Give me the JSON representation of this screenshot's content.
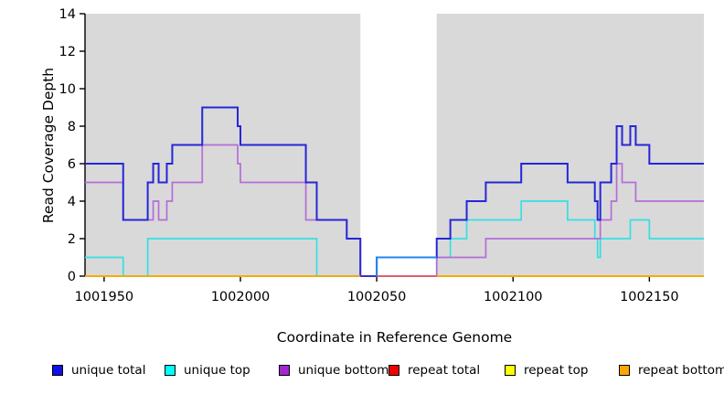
{
  "figure": {
    "title": "",
    "ylabel": "Read Coverage Depth",
    "xlabel": "Coordinate in Reference Genome",
    "background_color": "#ffffff",
    "plot_background_color": "#d9d9d9",
    "axis_color": "#000000",
    "highlight_band_color": "#ffffff"
  },
  "chart_data": {
    "type": "line",
    "subtype": "step-coverage",
    "title": "",
    "xlabel": "Coordinate in Reference Genome",
    "ylabel": "Read Coverage Depth",
    "xlim": [
      1001943,
      1002170
    ],
    "ylim": [
      0,
      14
    ],
    "x_ticks": [
      1001950,
      1002000,
      1002050,
      1002100,
      1002150
    ],
    "y_ticks": [
      0,
      2,
      4,
      6,
      8,
      10,
      12,
      14
    ],
    "grid": false,
    "legend_position": "bottom",
    "plot_background": "#d9d9d9",
    "highlight_band": {
      "x_start": 1002044,
      "x_end": 1002072,
      "color": "#ffffff"
    },
    "series": [
      {
        "name": "unique total",
        "color": "#2626d8",
        "legend_color": "#1010e8",
        "draw_order": 5,
        "width": 2,
        "steps": [
          [
            1001943,
            6
          ],
          [
            1001957,
            3
          ],
          [
            1001966,
            5
          ],
          [
            1001968,
            6
          ],
          [
            1001970,
            5
          ],
          [
            1001973,
            6
          ],
          [
            1001975,
            7
          ],
          [
            1001986,
            9
          ],
          [
            1001999,
            8
          ],
          [
            1002000,
            7
          ],
          [
            1002024,
            5
          ],
          [
            1002028,
            3
          ],
          [
            1002039,
            2
          ],
          [
            1002044,
            0
          ],
          [
            1002050,
            1
          ],
          [
            1002072,
            2
          ],
          [
            1002077,
            3
          ],
          [
            1002083,
            4
          ],
          [
            1002090,
            5
          ],
          [
            1002103,
            6
          ],
          [
            1002120,
            5
          ],
          [
            1002130,
            4
          ],
          [
            1002131,
            3
          ],
          [
            1002132,
            5
          ],
          [
            1002136,
            6
          ],
          [
            1002138,
            8
          ],
          [
            1002140,
            7
          ],
          [
            1002143,
            8
          ],
          [
            1002145,
            7
          ],
          [
            1002150,
            6
          ]
        ]
      },
      {
        "name": "unique top",
        "color": "#35dfe4",
        "legend_color": "#00ffff",
        "draw_order": 3,
        "width": 1.7,
        "steps": [
          [
            1001943,
            1
          ],
          [
            1001957,
            0
          ],
          [
            1001966,
            2
          ],
          [
            1002028,
            0
          ],
          [
            1002072,
            1
          ],
          [
            1002077,
            2
          ],
          [
            1002083,
            3
          ],
          [
            1002103,
            4
          ],
          [
            1002120,
            3
          ],
          [
            1002130,
            2
          ],
          [
            1002131,
            1
          ],
          [
            1002132,
            2
          ],
          [
            1002143,
            3
          ],
          [
            1002150,
            2
          ]
        ]
      },
      {
        "name": "unique bottom",
        "color": "#b46dd9",
        "legend_color": "#a227cf",
        "draw_order": 4,
        "width": 1.7,
        "steps": [
          [
            1001943,
            5
          ],
          [
            1001957,
            3
          ],
          [
            1001968,
            4
          ],
          [
            1001970,
            3
          ],
          [
            1001973,
            4
          ],
          [
            1001975,
            5
          ],
          [
            1001986,
            7
          ],
          [
            1001999,
            6
          ],
          [
            1002000,
            5
          ],
          [
            1002024,
            3
          ],
          [
            1002039,
            2
          ],
          [
            1002044,
            0
          ],
          [
            1002072,
            1
          ],
          [
            1002090,
            2
          ],
          [
            1002132,
            3
          ],
          [
            1002136,
            4
          ],
          [
            1002138,
            6
          ],
          [
            1002140,
            5
          ],
          [
            1002145,
            4
          ]
        ]
      },
      {
        "name": "repeat total",
        "color": "#f00000",
        "legend_color": "#f00000",
        "draw_order": 1,
        "width": 1.7,
        "steps": [
          [
            1001943,
            0
          ]
        ]
      },
      {
        "name": "repeat top",
        "color": "#ffff00",
        "legend_color": "#ffff00",
        "draw_order": 2,
        "width": 1.7,
        "steps": [
          [
            1001943,
            0
          ]
        ]
      },
      {
        "name": "repeat bottom",
        "color": "#ffa500",
        "legend_color": "#ffa500",
        "draw_order": 6,
        "width": 1.7,
        "steps": [
          [
            1001943,
            0
          ]
        ]
      }
    ],
    "overlays": [
      {
        "name": "band-baseline-unique-total",
        "color": "#2626d8",
        "width": 1.7,
        "points": [
          [
            1002044,
            0
          ],
          [
            1002050,
            0
          ]
        ]
      },
      {
        "name": "band-baseline-pink",
        "color": "#de5577",
        "width": 1.7,
        "points": [
          [
            1002050,
            0
          ],
          [
            1002072,
            0
          ]
        ]
      },
      {
        "name": "band-depth1-line",
        "color": "#2287ef",
        "width": 2,
        "points": [
          [
            1002050,
            0
          ],
          [
            1002050,
            1
          ],
          [
            1002072,
            1
          ]
        ]
      }
    ]
  },
  "legend": {
    "items": [
      {
        "label": "unique total",
        "color": "#1010e8"
      },
      {
        "label": "unique top",
        "color": "#00ffff"
      },
      {
        "label": "unique bottom",
        "color": "#a227cf"
      },
      {
        "label": "repeat total",
        "color": "#f00000"
      },
      {
        "label": "repeat top",
        "color": "#ffff00"
      },
      {
        "label": "repeat bottom",
        "color": "#ffa500"
      }
    ]
  }
}
